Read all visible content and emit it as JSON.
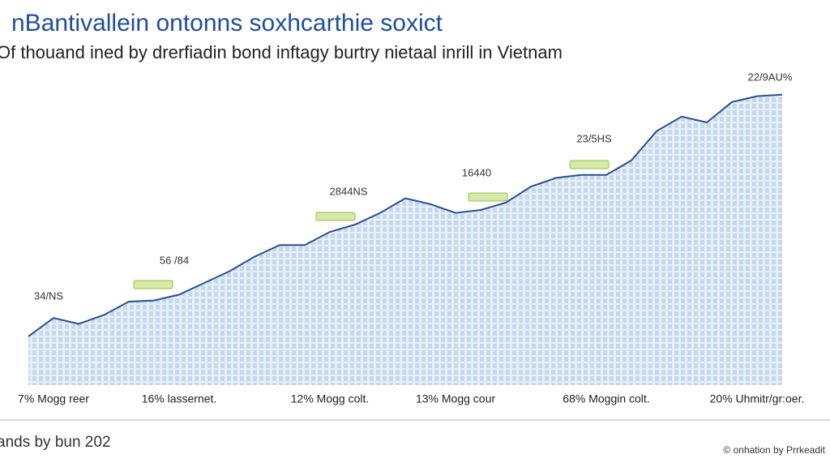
{
  "chart_data": {
    "type": "line",
    "title": "nBantivallein ontonns soxhcarthie soxict",
    "subtitle": "Of thouand ined by drerfiadin bond inftagy burtry nietaal inrill in Vietnam",
    "categories": [
      null,
      "7% Mogg reer",
      null,
      null,
      null,
      null,
      "16% lassernet.",
      null,
      null,
      null,
      null,
      null,
      "12% Mogg colt.",
      null,
      null,
      null,
      null,
      "13% Mogg cour",
      null,
      null,
      null,
      null,
      null,
      "68% Moggin colt.",
      null,
      null,
      null,
      null,
      null,
      "20% Uhmitr/gr:oer.",
      null
    ],
    "series": [
      {
        "name": null,
        "color": "#2b4f8e",
        "values": [
          16.7,
          23,
          21,
          24,
          28.6,
          29,
          31,
          35,
          39,
          44,
          48,
          48,
          52.5,
          55,
          59,
          64,
          62,
          59,
          60,
          62.5,
          68,
          71,
          72,
          72,
          77,
          87,
          92,
          90,
          97,
          99,
          99.5
        ]
      }
    ],
    "ylim": [
      0,
      100
    ],
    "area_color": "#cfe0f0",
    "annotations": [
      "34/NS",
      "56 /84",
      "2844NS",
      "16440",
      "23/5HS",
      "22/9AU%"
    ],
    "footnote": "ands by bun 202",
    "source": "© onhation by Prrkeadit"
  }
}
